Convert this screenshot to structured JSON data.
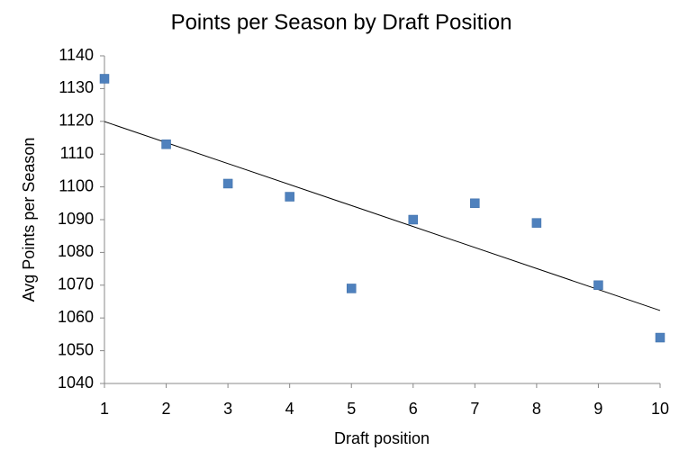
{
  "chart_data": {
    "type": "scatter",
    "title": "Points per Season by Draft Position",
    "x_label": "Draft position",
    "y_label": "Avg Points per Season",
    "x": [
      1,
      2,
      3,
      4,
      5,
      6,
      7,
      8,
      9,
      10
    ],
    "series": [
      {
        "color": "#4f81bd",
        "values": [
          1133,
          1113,
          1101,
          1097,
          1069,
          1090,
          1095,
          1089,
          1070,
          1054
        ]
      }
    ],
    "xlim": [
      1,
      10
    ],
    "xticks": [
      1,
      2,
      3,
      4,
      5,
      6,
      7,
      8,
      9,
      10
    ],
    "ylim": [
      1040,
      1140
    ],
    "yticks": [
      1040,
      1050,
      1060,
      1070,
      1080,
      1090,
      1100,
      1110,
      1120,
      1130,
      1140
    ],
    "trendline": "linear",
    "trendline_color": "#000000",
    "grid": false
  }
}
